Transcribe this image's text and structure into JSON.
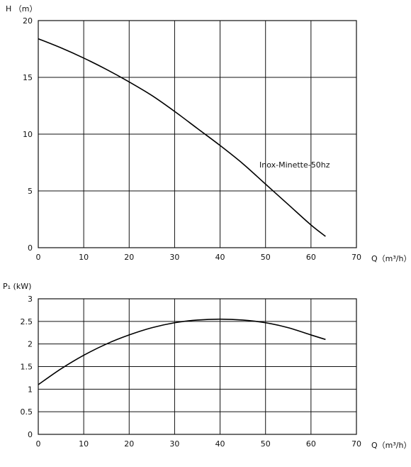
{
  "chart_data": [
    {
      "type": "line",
      "ylabel": "H （m）",
      "xlabel": "Q（m³/h）",
      "xlim": [
        0,
        70
      ],
      "ylim": [
        0,
        20
      ],
      "x_ticks": [
        "0",
        "10",
        "20",
        "30",
        "40",
        "50",
        "60",
        "70"
      ],
      "y_ticks": [
        "0",
        "5",
        "10",
        "15",
        "20"
      ],
      "grid": true,
      "series": [
        {
          "name": "Inox-Minette-50hz",
          "x": [
            0,
            5,
            10,
            15,
            20,
            25,
            30,
            35,
            40,
            45,
            50,
            55,
            60,
            63.2
          ],
          "y": [
            18.4,
            17.6,
            16.7,
            15.7,
            14.6,
            13.4,
            12.0,
            10.5,
            9.0,
            7.4,
            5.6,
            3.8,
            2.0,
            1.0
          ]
        }
      ]
    },
    {
      "type": "line",
      "ylabel": "P₁ (kW)",
      "xlabel": "Q（m³/h）",
      "xlim": [
        0,
        70
      ],
      "ylim": [
        0,
        3
      ],
      "x_ticks": [
        "0",
        "10",
        "20",
        "30",
        "40",
        "50",
        "60",
        "70"
      ],
      "y_ticks": [
        "0",
        "0.5",
        "1",
        "1.5",
        "2",
        "2.5",
        "3"
      ],
      "grid": true,
      "series": [
        {
          "x": [
            0,
            5,
            10,
            15,
            20,
            25,
            30,
            35,
            40,
            45,
            50,
            55,
            60,
            63.2
          ],
          "y": [
            1.1,
            1.45,
            1.75,
            2.0,
            2.2,
            2.36,
            2.47,
            2.53,
            2.55,
            2.53,
            2.47,
            2.36,
            2.2,
            2.1
          ]
        }
      ]
    }
  ]
}
